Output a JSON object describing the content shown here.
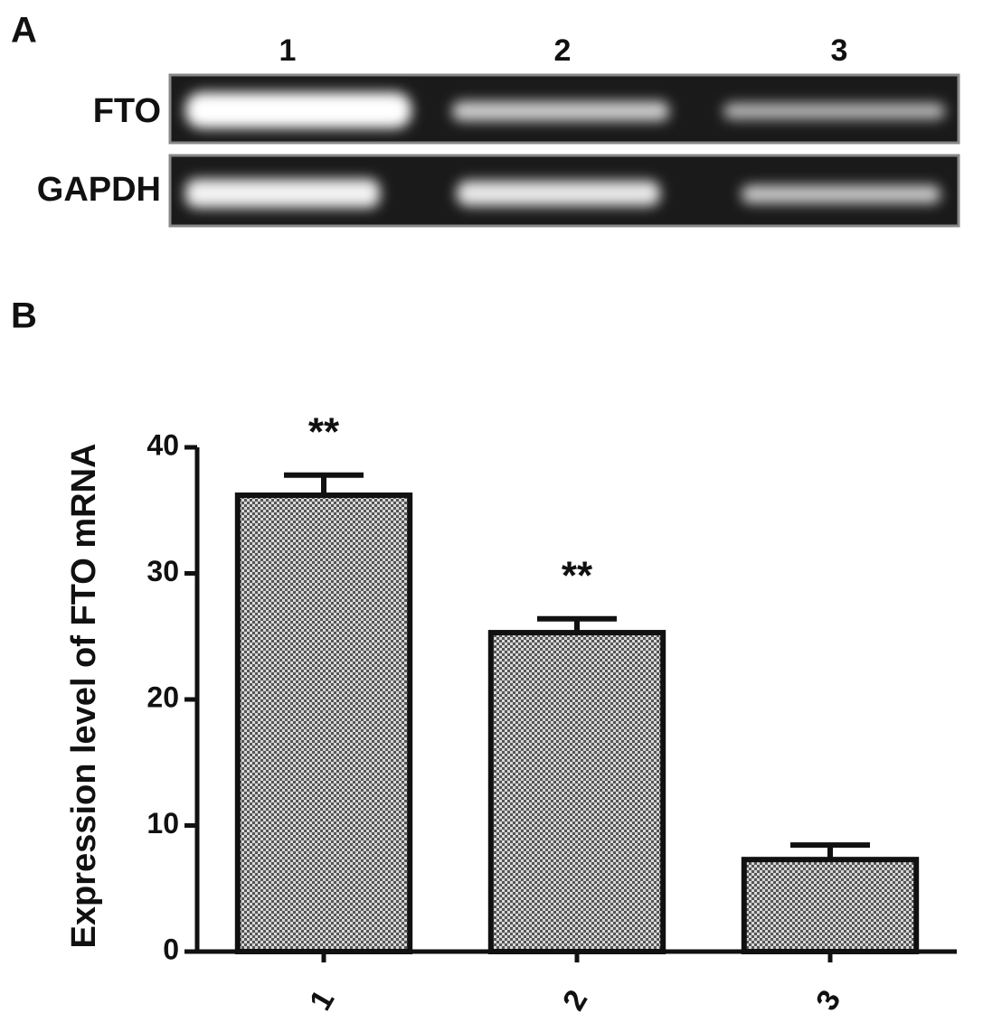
{
  "panel_labels": [
    "A",
    "B"
  ],
  "gel": {
    "lanes": [
      "1",
      "2",
      "3"
    ],
    "rows": [
      "FTO",
      "GAPDH"
    ]
  },
  "chart_data": {
    "type": "bar",
    "y_label": "Expression level of FTO mRNA",
    "categories": [
      "1",
      "2",
      "3"
    ],
    "values": [
      36.2,
      25.3,
      7.3
    ],
    "errors": [
      1.6,
      1.1,
      1.15
    ],
    "annotations": [
      "**",
      "**",
      null
    ],
    "ylim": [
      0,
      40
    ],
    "yticks": [
      0,
      10,
      20,
      30,
      40
    ]
  }
}
